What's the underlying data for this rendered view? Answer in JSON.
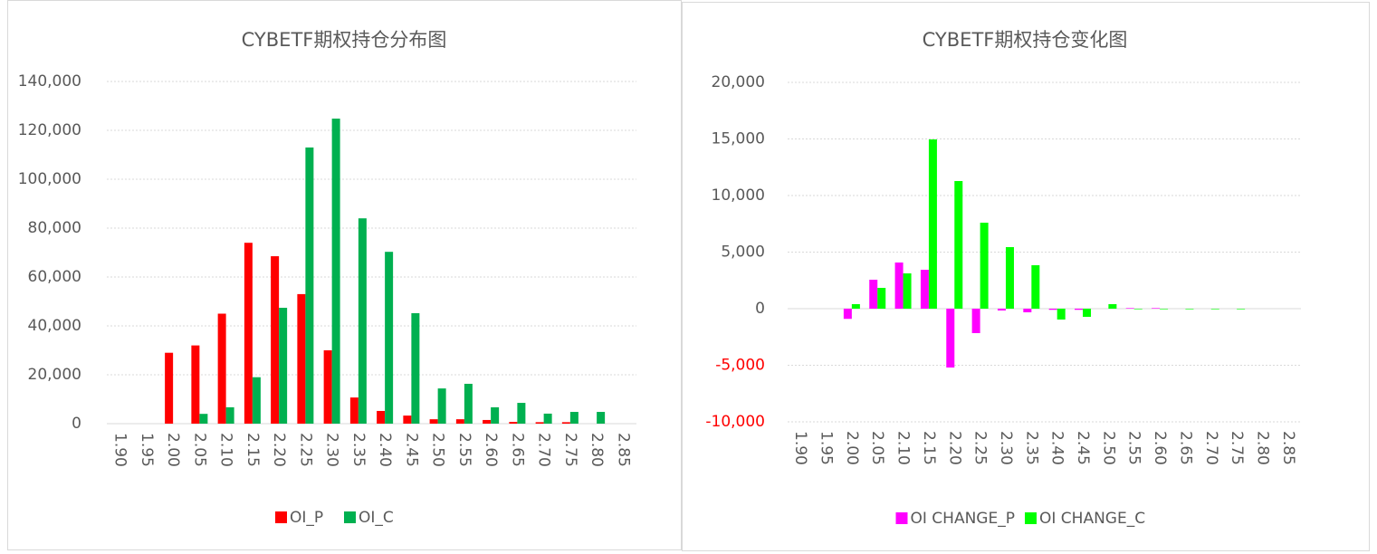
{
  "chart_data": [
    {
      "type": "bar",
      "title": "CYBETF期权持仓分布图",
      "categories": [
        "1.90",
        "1.95",
        "2.00",
        "2.05",
        "2.10",
        "2.15",
        "2.20",
        "2.25",
        "2.30",
        "2.35",
        "2.40",
        "2.45",
        "2.50",
        "2.55",
        "2.60",
        "2.65",
        "2.70",
        "2.75",
        "2.80",
        "2.85"
      ],
      "series": [
        {
          "name": "OI_P",
          "color": "#ff0000",
          "values": [
            0,
            0,
            29000,
            32000,
            45000,
            74000,
            68500,
            53000,
            30000,
            10700,
            5200,
            3300,
            1800,
            1800,
            1500,
            700,
            600,
            600,
            0,
            0
          ]
        },
        {
          "name": "OI_C",
          "color": "#00b050",
          "values": [
            0,
            0,
            0,
            4000,
            6700,
            19000,
            47400,
            113000,
            124800,
            84000,
            70300,
            45200,
            14400,
            16300,
            6700,
            8500,
            4100,
            4800,
            4800,
            0
          ]
        }
      ],
      "ylim": [
        0,
        140000
      ],
      "yticks": [
        0,
        {
          "value": 20000,
          "label": "20,000"
        },
        {
          "value": 40000,
          "label": "40,000"
        },
        {
          "value": 60000,
          "label": "60,000"
        },
        {
          "value": 80000,
          "label": "80,000"
        },
        {
          "value": 100000,
          "label": "100,000"
        },
        {
          "value": 120000,
          "label": "120,000"
        },
        {
          "value": 140000,
          "label": "140,000"
        }
      ],
      "grid": true,
      "legend": "bottom"
    },
    {
      "type": "bar",
      "title": "CYBETF期权持仓变化图",
      "categories": [
        "1.90",
        "1.95",
        "2.00",
        "2.05",
        "2.10",
        "2.15",
        "2.20",
        "2.25",
        "2.30",
        "2.35",
        "2.40",
        "2.45",
        "2.50",
        "2.55",
        "2.60",
        "2.65",
        "2.70",
        "2.75",
        "2.80",
        "2.85"
      ],
      "series": [
        {
          "name": "OI CHANGE_P",
          "color": "#ff00ff",
          "values": [
            0,
            0,
            -900,
            2560,
            4080,
            3440,
            -5200,
            -2160,
            -160,
            -320,
            -100,
            -100,
            0,
            50,
            50,
            0,
            0,
            0,
            0,
            0
          ]
        },
        {
          "name": "OI CHANGE_C",
          "color": "#00ff00",
          "values": [
            0,
            0,
            400,
            1840,
            3120,
            14960,
            11280,
            7600,
            5440,
            3840,
            -960,
            -720,
            400,
            -50,
            -50,
            -50,
            -50,
            -50,
            0,
            0
          ]
        }
      ],
      "ylim": [
        -10000,
        20000
      ],
      "yticks": [
        {
          "value": -10000,
          "label": "-10,000"
        },
        {
          "value": -5000,
          "label": "-5,000"
        },
        0,
        {
          "value": 5000,
          "label": "5,000"
        },
        {
          "value": 10000,
          "label": "10,000"
        },
        {
          "value": 15000,
          "label": "15,000"
        },
        {
          "value": 20000,
          "label": "20,000"
        }
      ],
      "negative_tick_color": "#ff0000",
      "grid": true,
      "legend": "bottom"
    }
  ]
}
